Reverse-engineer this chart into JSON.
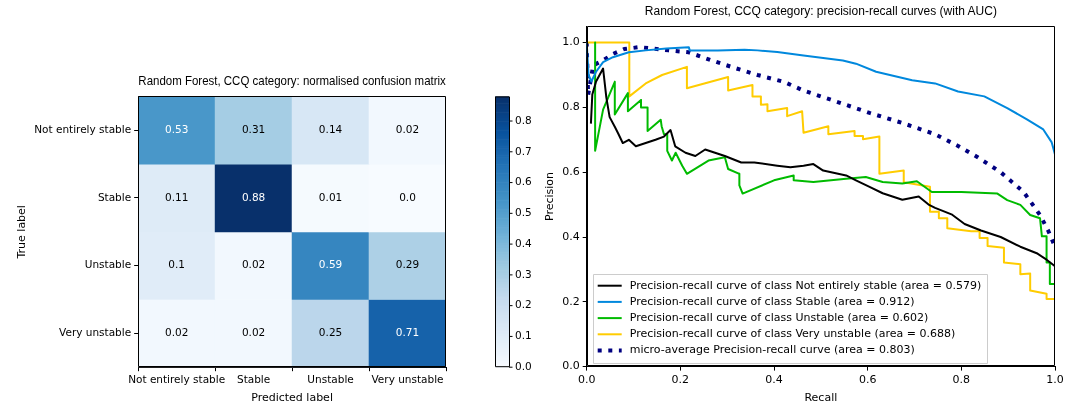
{
  "chart_data": [
    {
      "type": "heatmap",
      "title": "Random Forest, CCQ category: normalised confusion matrix",
      "xlabel": "Predicted label",
      "ylabel": "True label",
      "categories": [
        "Not entirely stable",
        "Stable",
        "Unstable",
        "Very unstable"
      ],
      "y_categories": [
        "Not entirely stable",
        "Stable",
        "Unstable",
        "Very unstable"
      ],
      "cells": [
        [
          0.53,
          0.31,
          0.14,
          0.02
        ],
        [
          0.11,
          0.88,
          0.01,
          0
        ],
        [
          0.1,
          0.02,
          0.59,
          0.29
        ],
        [
          0.02,
          0.02,
          0.25,
          0.71
        ]
      ],
      "cell_labels": [
        [
          "0.53",
          "0.31",
          "0.14",
          "0.02"
        ],
        [
          "0.11",
          "0.88",
          "0.01",
          "0.0"
        ],
        [
          "0.1",
          "0.02",
          "0.59",
          "0.29"
        ],
        [
          "0.02",
          "0.02",
          "0.25",
          "0.71"
        ]
      ],
      "clim": [
        0,
        0.88
      ],
      "cticks": [
        {
          "value": 0,
          "label": "0.0"
        },
        0.1,
        0.2,
        0.3,
        0.4,
        0.5,
        0.6,
        0.7,
        0.8
      ]
    },
    {
      "type": "line",
      "title": "Random Forest, CCQ category: precision-recall curves (with AUC)",
      "xlabel": "Recall",
      "ylabel": "Precision",
      "xlim": [
        0,
        1
      ],
      "ylim": [
        0,
        1.05
      ],
      "xticks": [
        {
          "value": 0,
          "label": "0.0"
        },
        0.2,
        0.4,
        0.6,
        0.8,
        {
          "value": 1,
          "label": "1.0"
        }
      ],
      "yticks": [
        {
          "value": 0,
          "label": "0.0"
        },
        0.2,
        0.4,
        0.6,
        0.8,
        {
          "value": 1,
          "label": "1.0"
        }
      ],
      "legend": "bottom left",
      "series": [
        {
          "name": "Precision-recall curve of class Not entirely stable (area = 0.579)",
          "color": "#000000",
          "x": [
            0.009,
            0.012,
            0.02,
            0.035,
            0.042,
            0.049,
            0.06,
            0.067,
            0.077,
            0.09,
            0.105,
            0.126,
            0.147,
            0.165,
            0.179,
            0.189,
            0.211,
            0.232,
            0.253,
            0.274,
            0.295,
            0.33,
            0.358,
            0.407,
            0.435,
            0.463,
            0.484,
            0.505,
            0.554,
            0.575,
            0.604,
            0.632,
            0.674,
            0.709,
            0.73,
            0.744,
            0.779,
            0.807,
            0.842,
            0.884,
            0.926,
            0.961,
            0.982,
            1
          ],
          "values": [
            0.75,
            0.84,
            0.88,
            0.92,
            0.83,
            0.77,
            0.74,
            0.72,
            0.69,
            0.7,
            0.68,
            0.69,
            0.7,
            0.71,
            0.73,
            0.68,
            0.66,
            0.65,
            0.67,
            0.66,
            0.65,
            0.63,
            0.63,
            0.62,
            0.615,
            0.62,
            0.625,
            0.605,
            0.59,
            0.575,
            0.555,
            0.535,
            0.515,
            0.525,
            0.5,
            0.49,
            0.47,
            0.44,
            0.42,
            0.4,
            0.37,
            0.35,
            0.33,
            0.31
          ]
        },
        {
          "name": "Precision-recall curve of class Stable (area = 0.912)",
          "color": "#0088dd",
          "x": [
            0,
            0.004,
            0.01,
            0.02,
            0.035,
            0.056,
            0.09,
            0.126,
            0.17,
            0.218,
            0.22,
            0.28,
            0.337,
            0.365,
            0.407,
            0.463,
            0.547,
            0.575,
            0.618,
            0.695,
            0.744,
            0.793,
            0.849,
            0.898,
            0.94,
            0.975,
            0.993,
            1
          ],
          "values": [
            1,
            0.9,
            0.88,
            0.91,
            0.94,
            0.955,
            0.97,
            0.976,
            0.982,
            0.986,
            0.976,
            0.976,
            0.978,
            0.976,
            0.971,
            0.96,
            0.945,
            0.935,
            0.91,
            0.884,
            0.874,
            0.849,
            0.834,
            0.798,
            0.763,
            0.732,
            0.692,
            0.655
          ]
        },
        {
          "name": "Precision-recall curve of class Unstable (area = 0.602)",
          "color": "#00bb00",
          "x": [
            0.018,
            0.018,
            0.035,
            0.06,
            0.06,
            0.088,
            0.088,
            0.116,
            0.116,
            0.13,
            0.13,
            0.158,
            0.16,
            0.165,
            0.172,
            0.172,
            0.182,
            0.19,
            0.204,
            0.214,
            0.26,
            0.295,
            0.302,
            0.326,
            0.326,
            0.333,
            0.4,
            0.442,
            0.442,
            0.484,
            0.554,
            0.596,
            0.632,
            0.674,
            0.705,
            0.737,
            0.8,
            0.877,
            0.898,
            0.926,
            0.947,
            0.968,
            0.972,
            0.982,
            0.982,
            0.989,
            0.989,
            1
          ],
          "values": [
            1,
            0.666,
            0.793,
            0.879,
            0.778,
            0.844,
            0.788,
            0.823,
            0.8,
            0.8,
            0.727,
            0.762,
            0.742,
            0.717,
            0.717,
            0.666,
            0.636,
            0.66,
            0.62,
            0.595,
            0.636,
            0.646,
            0.61,
            0.595,
            0.559,
            0.534,
            0.575,
            0.59,
            0.575,
            0.57,
            0.58,
            0.585,
            0.57,
            0.565,
            0.572,
            0.539,
            0.539,
            0.534,
            0.514,
            0.499,
            0.468,
            0.458,
            0.402,
            0.402,
            0.321,
            0.321,
            0.255,
            0.255
          ]
        },
        {
          "name": "Precision-recall curve of class Very unstable (area = 0.688)",
          "color": "#ffcc00",
          "x": [
            0,
            0.091,
            0.091,
            0.126,
            0.161,
            0.214,
            0.214,
            0.302,
            0.302,
            0.354,
            0.354,
            0.372,
            0.372,
            0.386,
            0.386,
            0.428,
            0.428,
            0.46,
            0.463,
            0.516,
            0.516,
            0.572,
            0.572,
            0.59,
            0.59,
            0.625,
            0.625,
            0.677,
            0.677,
            0.733,
            0.733,
            0.752,
            0.752,
            0.77,
            0.77,
            0.821,
            0.839,
            0.839,
            0.856,
            0.856,
            0.891,
            0.891,
            0.926,
            0.926,
            0.947,
            0.947,
            0.982,
            0.982,
            1
          ],
          "values": [
            1,
            1,
            0.834,
            0.874,
            0.9,
            0.925,
            0.859,
            0.894,
            0.852,
            0.869,
            0.834,
            0.834,
            0.808,
            0.81,
            0.788,
            0.798,
            0.773,
            0.788,
            0.722,
            0.742,
            0.717,
            0.727,
            0.712,
            0.712,
            0.702,
            0.71,
            0.595,
            0.605,
            0.569,
            0.555,
            0.478,
            0.478,
            0.458,
            0.458,
            0.427,
            0.418,
            0.418,
            0.397,
            0.397,
            0.372,
            0.367,
            0.321,
            0.316,
            0.285,
            0.287,
            0.235,
            0.225,
            0.209,
            0.209
          ]
        },
        {
          "name": "micro-average Precision-recall curve (area = 0.803)",
          "color": "#000080",
          "line_style": "dotted",
          "x": [
            0,
            0.003,
            0.014,
            0.035,
            0.056,
            0.08,
            0.112,
            0.14,
            0.175,
            0.218,
            0.267,
            0.309,
            0.365,
            0.421,
            0.463,
            0.533,
            0.604,
            0.674,
            0.744,
            0.793,
            0.835,
            0.884,
            0.933,
            0.968,
            0.986,
            1
          ],
          "values": [
            1,
            0.838,
            0.93,
            0.945,
            0.965,
            0.98,
            0.986,
            0.982,
            0.976,
            0.97,
            0.945,
            0.925,
            0.9,
            0.879,
            0.852,
            0.818,
            0.783,
            0.752,
            0.717,
            0.681,
            0.646,
            0.6,
            0.539,
            0.468,
            0.418,
            0.37
          ]
        }
      ]
    }
  ]
}
